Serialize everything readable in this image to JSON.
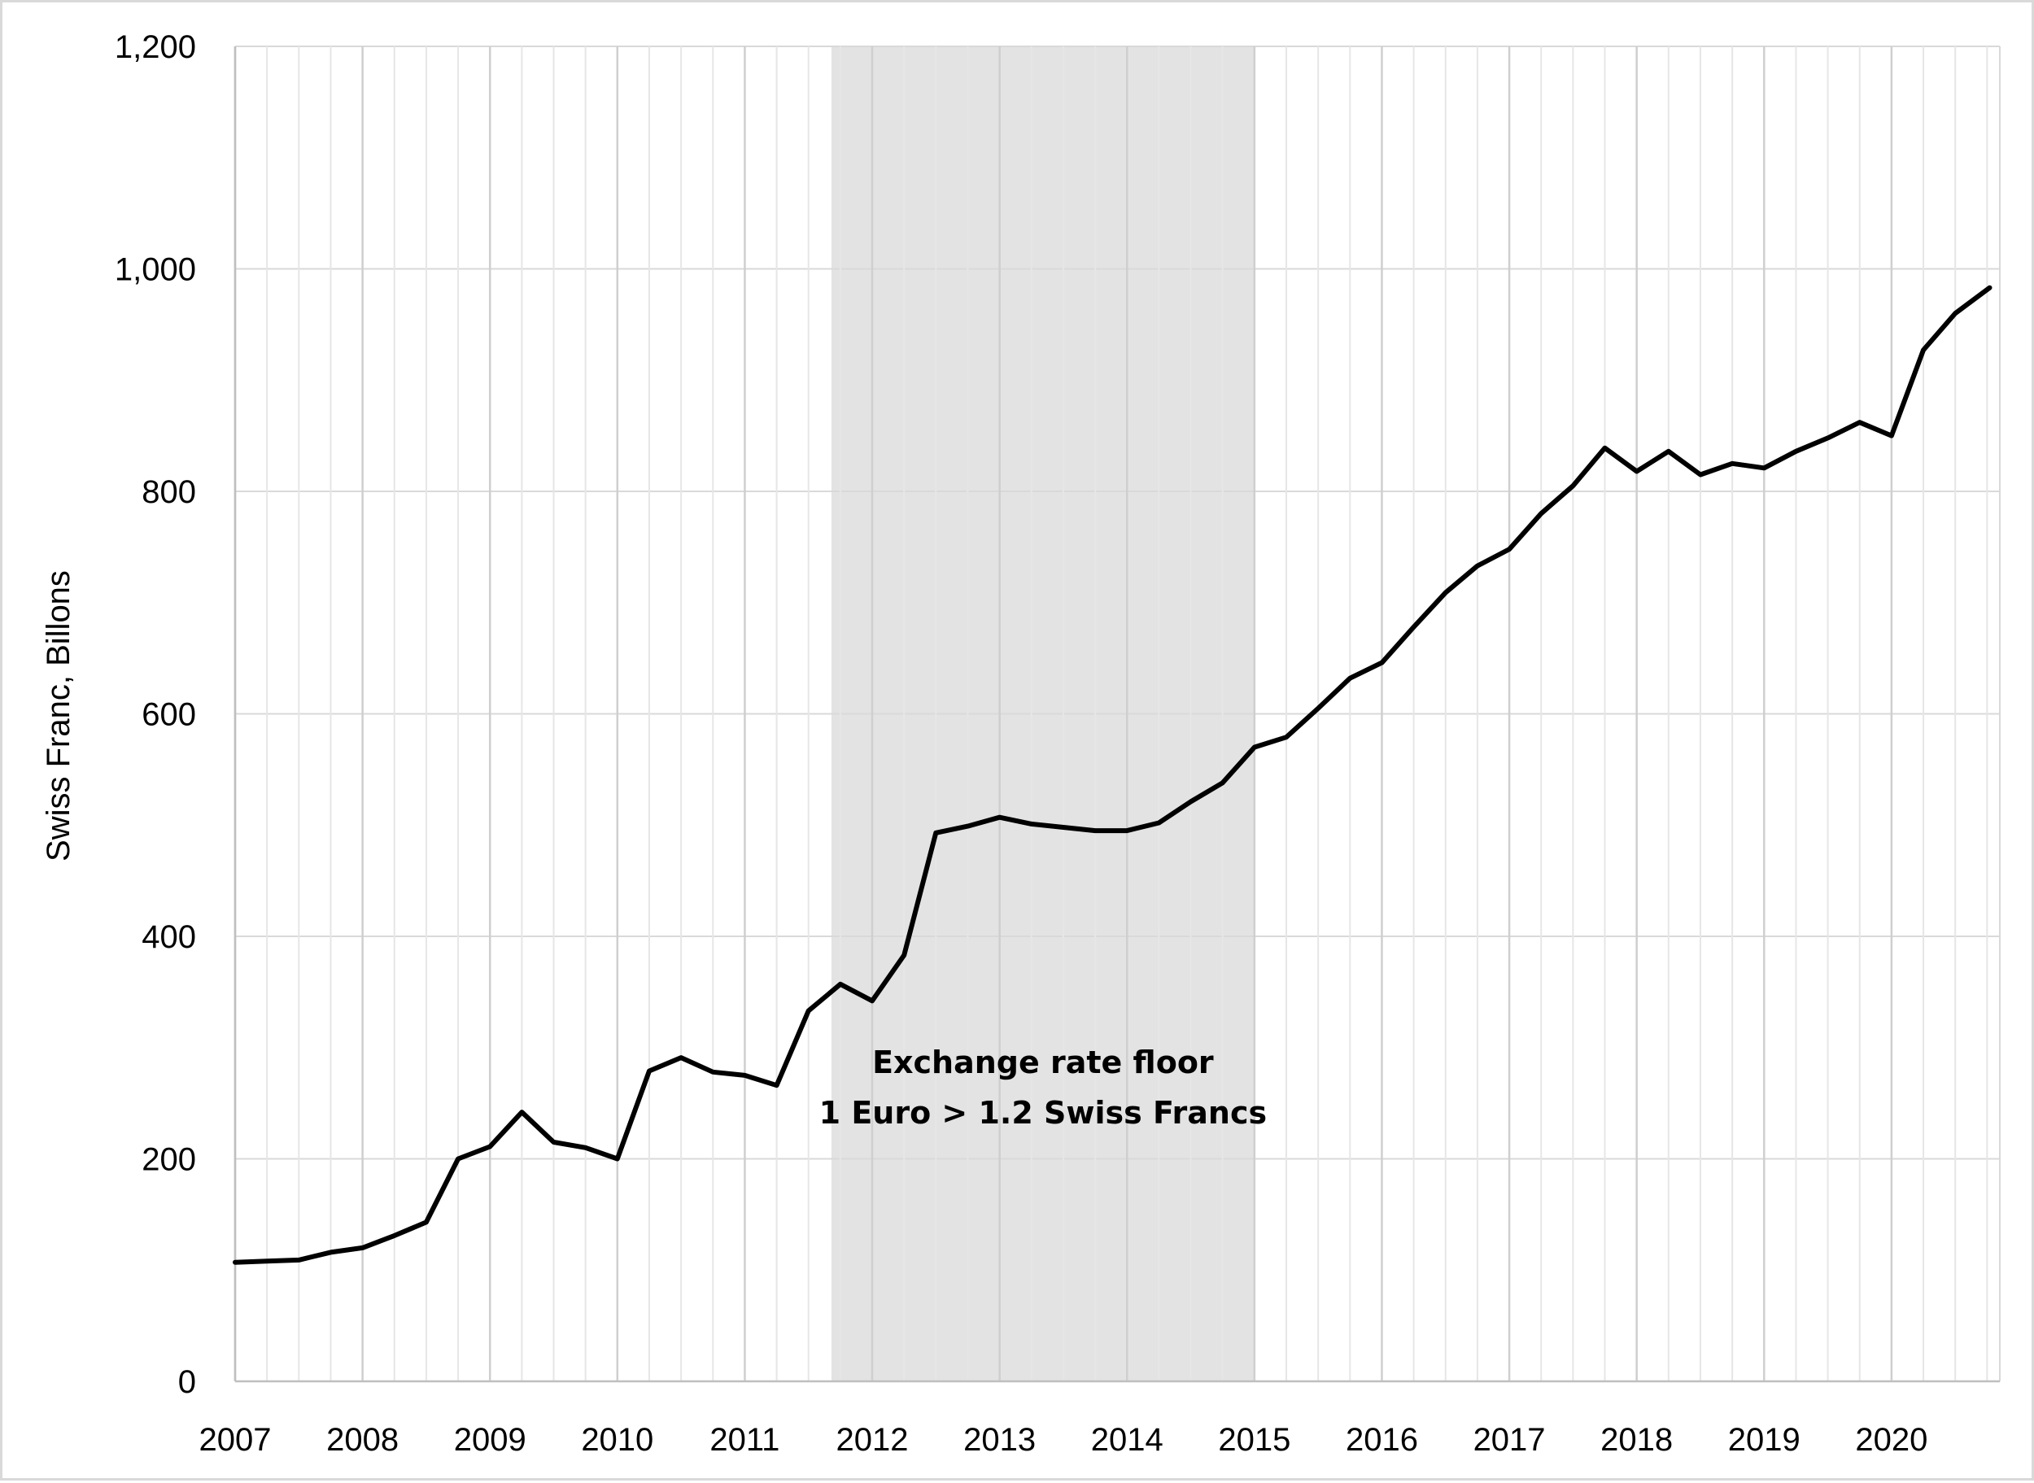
{
  "chart_data": {
    "type": "line",
    "title": "",
    "xlabel": "",
    "ylabel": "Swiss Franc, Billons",
    "ylim": [
      0,
      1200
    ],
    "xlim": [
      2007,
      2020.85
    ],
    "yticks": [
      0,
      200,
      400,
      600,
      800,
      1000,
      1200
    ],
    "ytick_labels": [
      "0",
      "200",
      "400",
      "600",
      "800",
      "1,000",
      "1,200"
    ],
    "xticks": [
      2007,
      2008,
      2009,
      2010,
      2011,
      2012,
      2013,
      2014,
      2015,
      2016,
      2017,
      2018,
      2019,
      2020
    ],
    "xtick_labels": [
      "2007",
      "2008",
      "2009",
      "2010",
      "2011",
      "2012",
      "2013",
      "2014",
      "2015",
      "2016",
      "2017",
      "2018",
      "2019",
      "2020"
    ],
    "grid": true,
    "legend": "none",
    "line_color": "#000000",
    "shade_color": "#e3e3e3",
    "shaded_region": {
      "x_start": 2011.68,
      "x_end": 2015.0,
      "label_line1": "Exchange rate floor",
      "label_line2": "1 Euro > 1.2 Swiss Francs"
    },
    "series": [
      {
        "x": [
          2007.0,
          2007.25,
          2007.5,
          2007.75,
          2008.0,
          2008.25,
          2008.5,
          2008.75,
          2009.0,
          2009.25,
          2009.5,
          2009.75,
          2010.0,
          2010.25,
          2010.5,
          2010.75,
          2011.0,
          2011.25,
          2011.5,
          2011.75,
          2012.0,
          2012.25,
          2012.5,
          2012.75,
          2013.0,
          2013.25,
          2013.5,
          2013.75,
          2014.0,
          2014.25,
          2014.5,
          2014.75,
          2015.0,
          2015.25,
          2015.5,
          2015.75,
          2016.0,
          2016.25,
          2016.5,
          2016.75,
          2017.0,
          2017.25,
          2017.5,
          2017.75,
          2018.0,
          2018.25,
          2018.5,
          2018.75,
          2019.0,
          2019.25,
          2019.5,
          2019.75,
          2020.0,
          2020.25,
          2020.5,
          2020.77
        ],
        "values": [
          107,
          108,
          109,
          116,
          120,
          131,
          143,
          200,
          211,
          242,
          215,
          210,
          200,
          279,
          291,
          278,
          275,
          266,
          333,
          357,
          342,
          383,
          493,
          499,
          507,
          501,
          498,
          495,
          495,
          502,
          521,
          538,
          570,
          579,
          605,
          632,
          646,
          678,
          709,
          733,
          748,
          780,
          805,
          839,
          818,
          836,
          815,
          825,
          821,
          836,
          848,
          862,
          850,
          927,
          960,
          983
        ]
      }
    ]
  }
}
